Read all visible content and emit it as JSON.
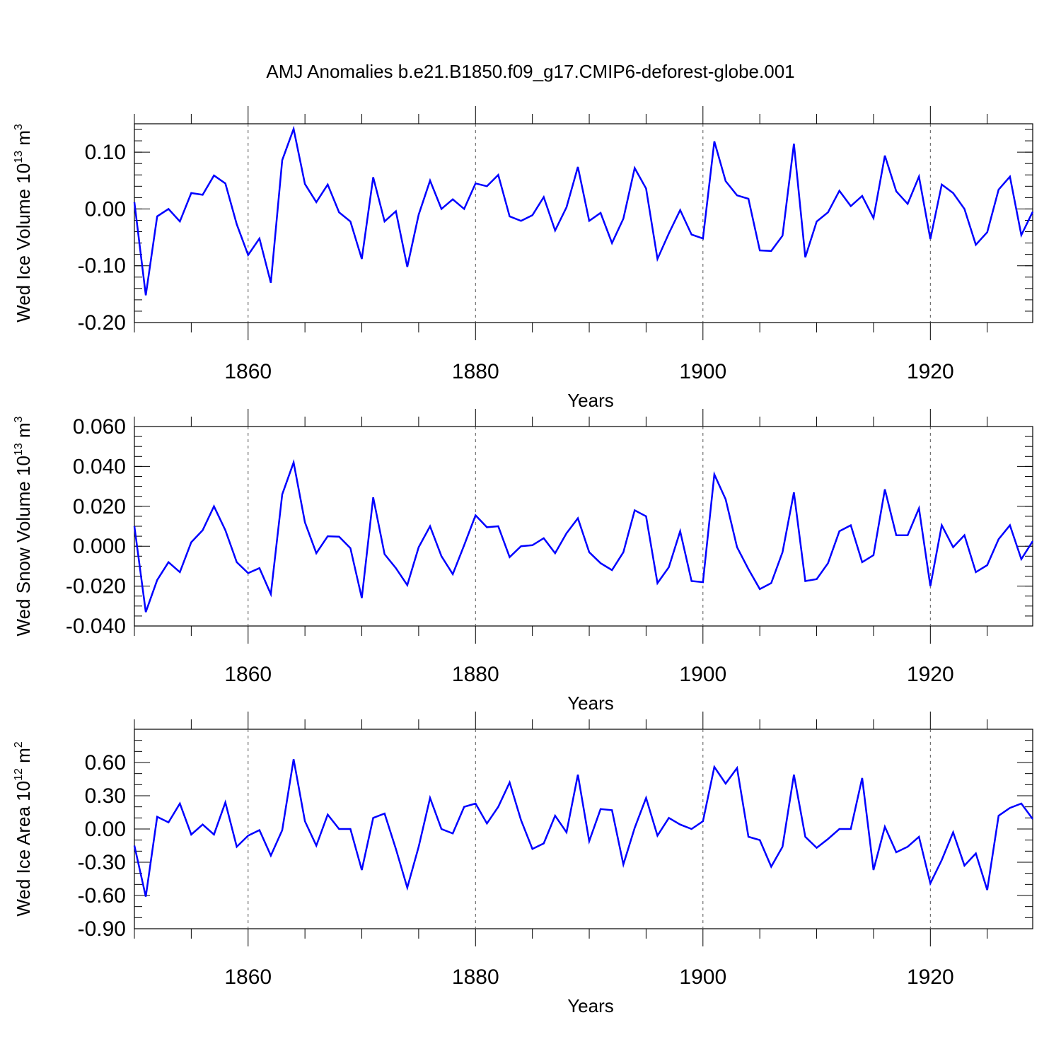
{
  "title": "AMJ Anomalies b.e21.B1850.f09_g17.CMIP6-deforest-globe.001",
  "line_color": "#0000ff",
  "chart_data": [
    {
      "type": "line",
      "xlabel": "Years",
      "ylabel": "Wed Ice Volume 10",
      "ylabel_exp": "13",
      "ylabel_unit": " m",
      "ylabel_unit_exp": "3",
      "xlim": [
        1850,
        1929
      ],
      "ylim": [
        -0.2,
        0.15
      ],
      "yticks": [
        -0.2,
        -0.1,
        0.0,
        0.1
      ],
      "ytick_labels": [
        "-0.20",
        "-0.10",
        "0.00",
        "0.10"
      ],
      "ytick_minor": 0.02,
      "xticks": [
        1860,
        1880,
        1900,
        1920
      ],
      "xtick_labels": [
        "1860",
        "1880",
        "1900",
        "1920"
      ],
      "x_start": 1850,
      "series": [
        {
          "values": [
            0.012,
            -0.152,
            -0.013,
            0.0,
            -0.022,
            0.028,
            0.025,
            0.059,
            0.045,
            -0.027,
            -0.081,
            -0.052,
            -0.13,
            0.086,
            0.141,
            0.044,
            0.012,
            0.043,
            -0.006,
            -0.022,
            -0.088,
            0.056,
            -0.022,
            -0.004,
            -0.102,
            -0.01,
            0.05,
            0.0,
            0.017,
            0.0,
            0.045,
            0.04,
            0.06,
            -0.013,
            -0.021,
            -0.011,
            0.021,
            -0.038,
            0.003,
            0.074,
            -0.021,
            -0.007,
            -0.06,
            -0.017,
            0.072,
            0.036,
            -0.088,
            -0.043,
            -0.002,
            -0.045,
            -0.052,
            0.119,
            0.049,
            0.024,
            0.018,
            -0.073,
            -0.074,
            -0.047,
            0.115,
            -0.085,
            -0.022,
            -0.006,
            0.032,
            0.005,
            0.023,
            -0.016,
            0.094,
            0.031,
            0.009,
            0.057,
            -0.053,
            0.043,
            0.028,
            0.0,
            -0.063,
            -0.041,
            0.034,
            0.057,
            -0.046,
            -0.005
          ]
        }
      ]
    },
    {
      "type": "line",
      "xlabel": "Years",
      "ylabel": "Wed Snow Volume 10",
      "ylabel_exp": "13",
      "ylabel_unit": " m",
      "ylabel_unit_exp": "3",
      "xlim": [
        1850,
        1929
      ],
      "ylim": [
        -0.04,
        0.06
      ],
      "yticks": [
        -0.04,
        -0.02,
        0.0,
        0.02,
        0.04,
        0.06
      ],
      "ytick_labels": [
        "-0.040",
        "-0.020",
        "0.000",
        "0.020",
        "0.040",
        "0.060"
      ],
      "ytick_minor": 0.005,
      "xticks": [
        1860,
        1880,
        1900,
        1920
      ],
      "xtick_labels": [
        "1860",
        "1880",
        "1900",
        "1920"
      ],
      "x_start": 1850,
      "series": [
        {
          "values": [
            0.01,
            -0.033,
            -0.017,
            -0.008,
            -0.013,
            0.002,
            0.008,
            0.02,
            0.008,
            -0.008,
            -0.0135,
            -0.011,
            -0.024,
            0.026,
            0.042,
            0.012,
            -0.0035,
            0.005,
            0.0048,
            -0.001,
            -0.026,
            0.0245,
            -0.004,
            -0.011,
            -0.0195,
            -0.0005,
            0.01,
            -0.005,
            -0.014,
            0.0005,
            0.0155,
            0.0095,
            0.01,
            -0.0055,
            0.0,
            0.0005,
            0.004,
            -0.0035,
            0.0065,
            0.014,
            -0.003,
            -0.0085,
            -0.012,
            -0.003,
            0.018,
            0.015,
            -0.0185,
            -0.0105,
            0.0075,
            -0.0175,
            -0.018,
            0.036,
            0.0235,
            -0.0005,
            -0.0115,
            -0.0215,
            -0.0185,
            -0.003,
            0.027,
            -0.0175,
            -0.0165,
            -0.0085,
            0.0075,
            0.0105,
            -0.008,
            -0.0045,
            0.0285,
            0.0055,
            0.0055,
            0.019,
            -0.02,
            0.0105,
            -0.0005,
            0.0055,
            -0.013,
            -0.0095,
            0.0035,
            0.0105,
            -0.0065,
            0.0025
          ]
        }
      ]
    },
    {
      "type": "line",
      "xlabel": "Years",
      "ylabel": "Wed Ice Area 10",
      "ylabel_exp": "12",
      "ylabel_unit": " m",
      "ylabel_unit_exp": "2",
      "xlim": [
        1850,
        1929
      ],
      "ylim": [
        -0.9,
        0.9
      ],
      "yticks": [
        -0.9,
        -0.6,
        -0.3,
        0.0,
        0.3,
        0.6
      ],
      "ytick_labels": [
        "-0.90",
        "-0.60",
        "-0.30",
        "0.00",
        "0.30",
        "0.60"
      ],
      "ytick_minor": 0.1,
      "xticks": [
        1860,
        1880,
        1900,
        1920
      ],
      "xtick_labels": [
        "1860",
        "1880",
        "1900",
        "1920"
      ],
      "x_start": 1850,
      "series": [
        {
          "values": [
            -0.15,
            -0.61,
            0.11,
            0.06,
            0.23,
            -0.05,
            0.04,
            -0.05,
            0.24,
            -0.16,
            -0.06,
            -0.01,
            -0.24,
            -0.01,
            0.63,
            0.07,
            -0.15,
            0.13,
            0.0,
            0.0,
            -0.37,
            0.1,
            0.14,
            -0.18,
            -0.53,
            -0.16,
            0.28,
            0.0,
            -0.04,
            0.2,
            0.23,
            0.05,
            0.2,
            0.42,
            0.08,
            -0.18,
            -0.13,
            0.12,
            -0.03,
            0.49,
            -0.11,
            0.18,
            0.17,
            -0.32,
            0.01,
            0.28,
            -0.06,
            0.1,
            0.04,
            0.0,
            0.07,
            0.56,
            0.41,
            0.55,
            -0.07,
            -0.1,
            -0.34,
            -0.16,
            0.49,
            -0.07,
            -0.17,
            -0.09,
            0.0,
            0.0,
            0.46,
            -0.37,
            0.02,
            -0.21,
            -0.16,
            -0.07,
            -0.49,
            -0.28,
            -0.03,
            -0.33,
            -0.22,
            -0.55,
            0.12,
            0.19,
            0.23,
            0.09
          ]
        }
      ]
    }
  ]
}
